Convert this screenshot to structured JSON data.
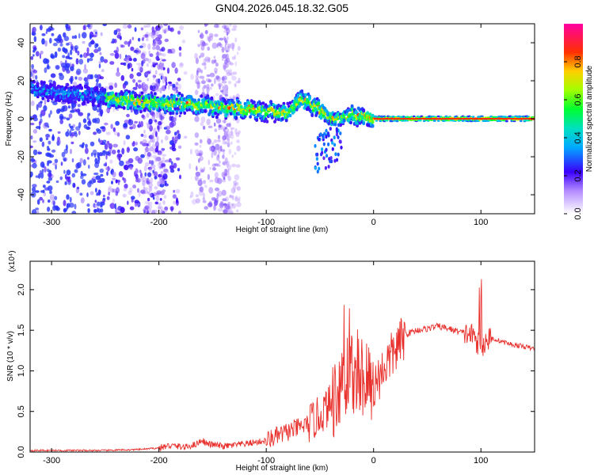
{
  "title": "GN04.2026.045.18.32.G05",
  "chart_data": [
    {
      "type": "heatmap",
      "xlabel": "Height of straight line (km)",
      "ylabel": "Frequency (Hz)",
      "xlim": [
        -320,
        150
      ],
      "ylim": [
        -50,
        50
      ],
      "xticks": [
        -300,
        -200,
        -100,
        0,
        100
      ],
      "yticks": [
        -40,
        -20,
        0,
        20,
        40
      ],
      "colorbar": {
        "label": "Normalized spectral amplitude",
        "ticks": [
          0.0,
          0.2,
          0.4,
          0.6,
          0.8
        ],
        "range": [
          0,
          1
        ]
      },
      "ridge": {
        "x": [
          -320,
          -300,
          -260,
          -250,
          -220,
          -200,
          -170,
          -150,
          -120,
          -100,
          -80,
          -70,
          -60,
          -50,
          -40,
          -35,
          -30,
          -20,
          -10,
          0,
          50,
          100,
          150
        ],
        "freq": [
          16,
          14,
          12,
          11,
          9,
          8,
          8,
          6,
          5,
          4,
          3,
          10,
          8,
          5,
          0,
          0,
          0,
          2,
          1,
          0,
          0,
          0,
          0
        ]
      }
    },
    {
      "type": "line",
      "xlabel": "Height of straight line (km)",
      "ylabel": "SNR (10 * v/v)",
      "yscale_label": "(x10⁴)",
      "xlim": [
        -320,
        150
      ],
      "ylim": [
        0,
        2.35
      ],
      "xticks": [
        -300,
        -200,
        -100,
        0,
        100
      ],
      "yticks": [
        0.0,
        0.5,
        1.0,
        1.5,
        2.0
      ],
      "color": "#e8302c",
      "series": [
        {
          "x": [
            -320,
            -300,
            -250,
            -220,
            -200,
            -190,
            -175,
            -165,
            -160,
            -155,
            -140,
            -120,
            -100,
            -80,
            -60,
            -50,
            -40,
            -30,
            -20,
            -10,
            -5,
            0,
            10,
            20,
            30,
            40,
            50,
            60,
            70,
            80,
            90,
            95,
            100,
            105,
            110,
            120,
            130,
            140,
            150
          ],
          "y": [
            0.02,
            0.02,
            0.02,
            0.03,
            0.05,
            0.08,
            0.06,
            0.1,
            0.15,
            0.1,
            0.07,
            0.1,
            0.14,
            0.25,
            0.35,
            0.45,
            0.6,
            0.9,
            1.0,
            0.95,
            0.85,
            0.8,
            1.05,
            1.25,
            1.45,
            1.5,
            1.52,
            1.55,
            1.52,
            1.48,
            1.45,
            1.4,
            1.25,
            1.38,
            1.4,
            1.36,
            1.32,
            1.3,
            1.27
          ]
        }
      ]
    }
  ]
}
